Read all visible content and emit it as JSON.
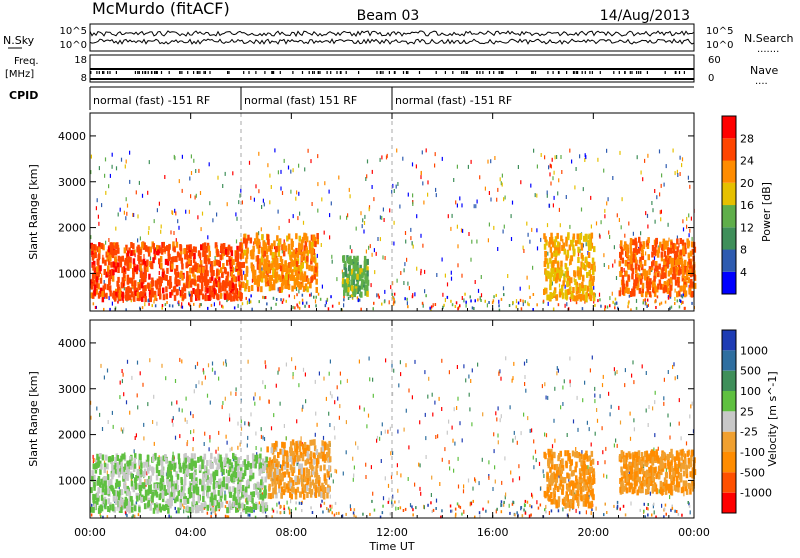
{
  "header": {
    "station": "McMurdo (fitACF)",
    "beam": "Beam 03",
    "date": "14/Aug/2013"
  },
  "summary_panel": {
    "left_labels": [
      "N.Sky",
      "Freq.",
      "[MHz]",
      "CPID"
    ],
    "right_labels": [
      "N.Search",
      "Nave"
    ],
    "left_ticks_top": [
      "10^5",
      "10^0"
    ],
    "right_ticks_top": [
      "10^5",
      "10^0"
    ],
    "left_ticks_freq": [
      "18",
      "8"
    ],
    "right_ticks_nave": [
      "60",
      "0"
    ],
    "cpid_segments": [
      {
        "label": "normal (fast) -151 RF",
        "start_hour": 0,
        "end_hour": 6
      },
      {
        "label": "normal (fast) 151 RF",
        "start_hour": 6,
        "end_hour": 12
      },
      {
        "label": "normal (fast) -151 RF",
        "start_hour": 12,
        "end_hour": 24
      }
    ]
  },
  "colors": {
    "power_scale": [
      "#0000ff",
      "#2e5bb0",
      "#3f8f5a",
      "#5fae4a",
      "#e6c000",
      "#ff8c00",
      "#ff4500",
      "#ff0000"
    ],
    "velocity_scale": [
      "#1e3cb4",
      "#2f6fa0",
      "#3f8f5a",
      "#5fc040",
      "#c8c8c8",
      "#f0a030",
      "#ff8c00",
      "#ff5000",
      "#ff0000"
    ]
  },
  "chart_data": [
    {
      "type": "heatmap",
      "title": "",
      "ylabel": "Slant Range [km]",
      "xlabel": "",
      "x_ticks": [
        "00:00",
        "04:00",
        "08:00",
        "12:00",
        "16:00",
        "20:00",
        "00:00"
      ],
      "x_range_hours": [
        0,
        24
      ],
      "ylim": [
        180,
        4500
      ],
      "y_ticks": [
        1000,
        2000,
        3000,
        4000
      ],
      "colorbar": {
        "label": "Power [dB]",
        "ticks": [
          "4",
          "8",
          "12",
          "16",
          "20",
          "24",
          "28"
        ],
        "range": [
          0,
          32
        ]
      },
      "regions": [
        {
          "t0": 0.0,
          "t1": 6.0,
          "r_lo": 500,
          "r_hi": 1700,
          "value": 26
        },
        {
          "t0": 6.0,
          "t1": 9.0,
          "r_lo": 700,
          "r_hi": 1900,
          "value": 22
        },
        {
          "t0": 10.0,
          "t1": 11.0,
          "r_lo": 600,
          "r_hi": 1400,
          "value": 14
        },
        {
          "t0": 18.0,
          "t1": 20.0,
          "r_lo": 500,
          "r_hi": 1900,
          "value": 20
        },
        {
          "t0": 21.0,
          "t1": 24.0,
          "r_lo": 600,
          "r_hi": 1800,
          "value": 24
        }
      ]
    },
    {
      "type": "heatmap",
      "title": "",
      "ylabel": "Slant Range [km]",
      "xlabel": "Time UT",
      "x_ticks": [
        "00:00",
        "04:00",
        "08:00",
        "12:00",
        "16:00",
        "20:00",
        "00:00"
      ],
      "x_range_hours": [
        0,
        24
      ],
      "ylim": [
        180,
        4500
      ],
      "y_ticks": [
        1000,
        2000,
        3000,
        4000
      ],
      "colorbar": {
        "label": "Velocity [m s^-1]",
        "ticks": [
          "1000",
          "500",
          "100",
          "25",
          "-25",
          "-100",
          "-500",
          "-1000"
        ],
        "range": [
          -1200,
          1200
        ]
      },
      "regions": [
        {
          "t0": 0.0,
          "t1": 7.0,
          "r_lo": 400,
          "r_hi": 1600,
          "value": 150
        },
        {
          "t0": 7.0,
          "t1": 9.5,
          "r_lo": 700,
          "r_hi": 1900,
          "value": -300
        },
        {
          "t0": 18.0,
          "t1": 20.0,
          "r_lo": 500,
          "r_hi": 1700,
          "value": -400
        },
        {
          "t0": 21.0,
          "t1": 24.0,
          "r_lo": 800,
          "r_hi": 1700,
          "value": -400
        }
      ]
    }
  ]
}
